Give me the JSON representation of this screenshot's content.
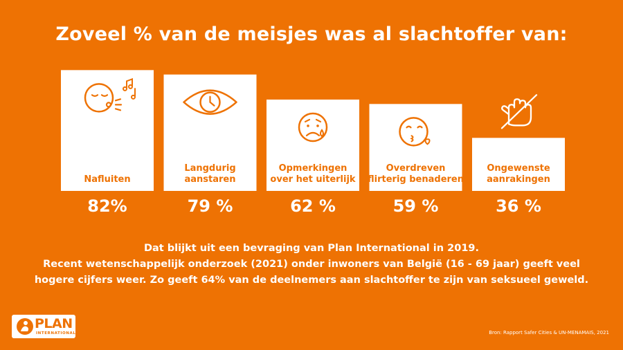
{
  "title": "Zoveel % van de meisjes was al slachtoffer van:",
  "chart_data": {
    "type": "bar",
    "categories": [
      [
        "Nafluiten"
      ],
      [
        "Langdurig",
        "aanstaren"
      ],
      [
        "Opmerkingen",
        "over het uiterlijk"
      ],
      [
        "Overdreven",
        "flirterig benaderen"
      ],
      [
        "Ongewenste",
        "aanrakingen"
      ]
    ],
    "values": [
      82,
      79,
      62,
      59,
      36
    ],
    "value_labels": [
      "82%",
      "79 %",
      "62 %",
      "59 %",
      "36 %"
    ],
    "icons": [
      "whistling-face-icon",
      "staring-eye-clock-icon",
      "sad-crying-face-icon",
      "kiss-face-icon",
      "no-touch-hand-icon"
    ],
    "bar_color": "#ffffff",
    "background_color": "#ee7203",
    "label_color": "#ee7203"
  },
  "info": {
    "line1": "Dat blijkt uit een bevraging van Plan International in 2019.",
    "line2": "Recent wetenschappelijk onderzoek (2021) onder inwoners van België (16 - 69 jaar) geeft veel",
    "line3": "hogere cijfers weer. Zo geeft 64% van de deelnemers aan slachtoffer te zijn van seksueel geweld."
  },
  "logo": {
    "name": "PLAN",
    "sub": "INTERNATIONAL"
  },
  "source": "Bron: Rapport Safer Cities & UN-MENAMAIS, 2021"
}
